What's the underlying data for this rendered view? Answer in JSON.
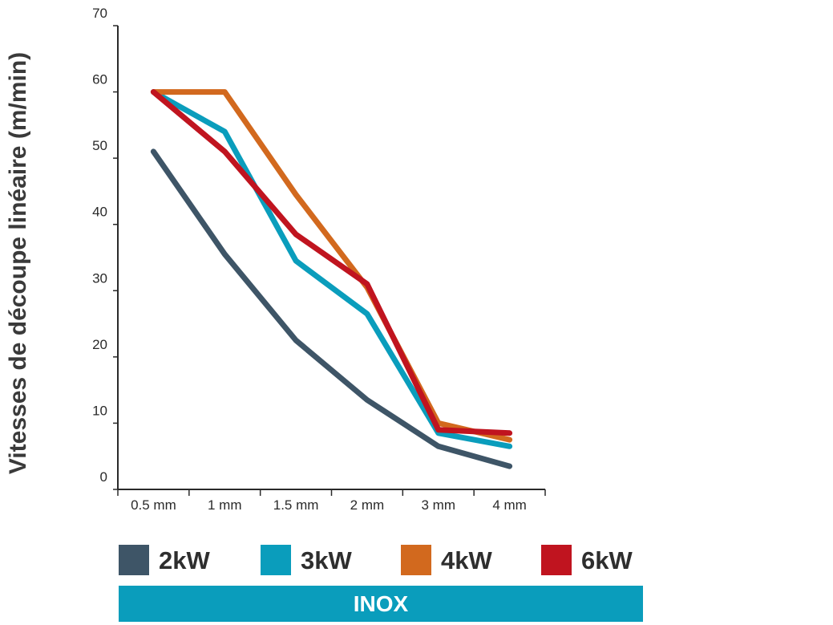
{
  "chart_data": {
    "type": "line",
    "ylabel": "Vitesses de découpe linéaire (m/min)",
    "xlabel": "",
    "categories": [
      "0.5 mm",
      "1 mm",
      "1.5 mm",
      "2 mm",
      "3 mm",
      "4 mm"
    ],
    "ylim": [
      0,
      70
    ],
    "yticks": [
      0,
      10,
      20,
      30,
      40,
      50,
      60,
      70
    ],
    "grid": false,
    "legend_position": "bottom",
    "series": [
      {
        "name": "2kW",
        "color": "#3e5567",
        "values": [
          51,
          35.5,
          22.5,
          13.5,
          6.5,
          3.5
        ]
      },
      {
        "name": "3kW",
        "color": "#0a9dbc",
        "values": [
          60,
          54,
          34.5,
          26.5,
          8.5,
          6.5
        ]
      },
      {
        "name": "4kW",
        "color": "#d2691e",
        "values": [
          60,
          60,
          44.5,
          30.5,
          10,
          7.5
        ]
      },
      {
        "name": "6kW",
        "color": "#c0141f",
        "values": [
          60,
          51,
          38.5,
          31,
          9,
          8.5
        ]
      }
    ],
    "banner": {
      "label": "INOX",
      "color": "#0a9dbc"
    }
  }
}
